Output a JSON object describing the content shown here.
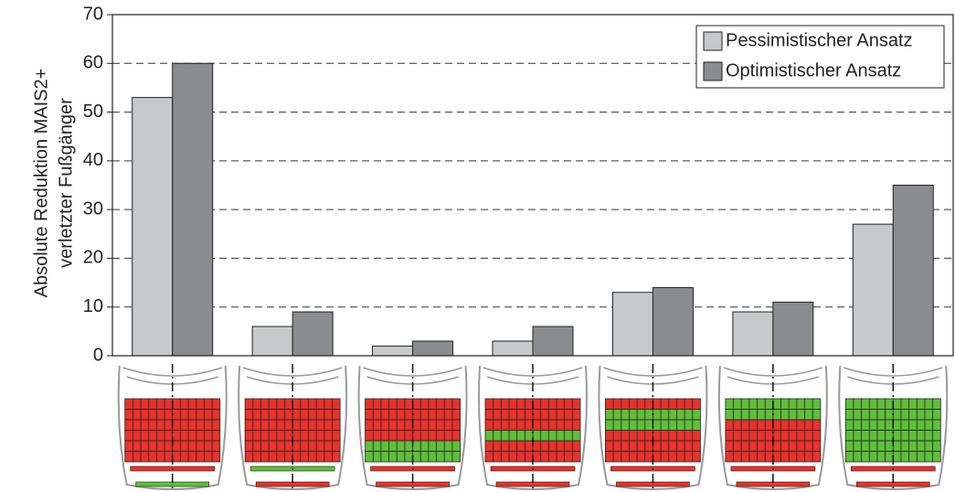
{
  "chart_data": {
    "type": "bar",
    "ylabel": [
      "Absolute Reduktion MAIS2+",
      "verletzter Fußgänger"
    ],
    "categories": [
      null,
      null,
      null,
      null,
      null,
      null,
      null
    ],
    "series": [
      {
        "name": "Pessimistischer Ansatz",
        "color": "#c8c9cb",
        "values": [
          53,
          6,
          2,
          3,
          13,
          9,
          27
        ]
      },
      {
        "name": "Optimistischer Ansatz",
        "color": "#8b8c8f",
        "values": [
          60,
          9,
          3,
          6,
          14,
          11,
          35
        ]
      }
    ],
    "ylim": [
      0,
      70
    ],
    "yticks": [
      0,
      10,
      20,
      30,
      40,
      50,
      60,
      70
    ],
    "grid": true,
    "legend": "upper right"
  }
}
